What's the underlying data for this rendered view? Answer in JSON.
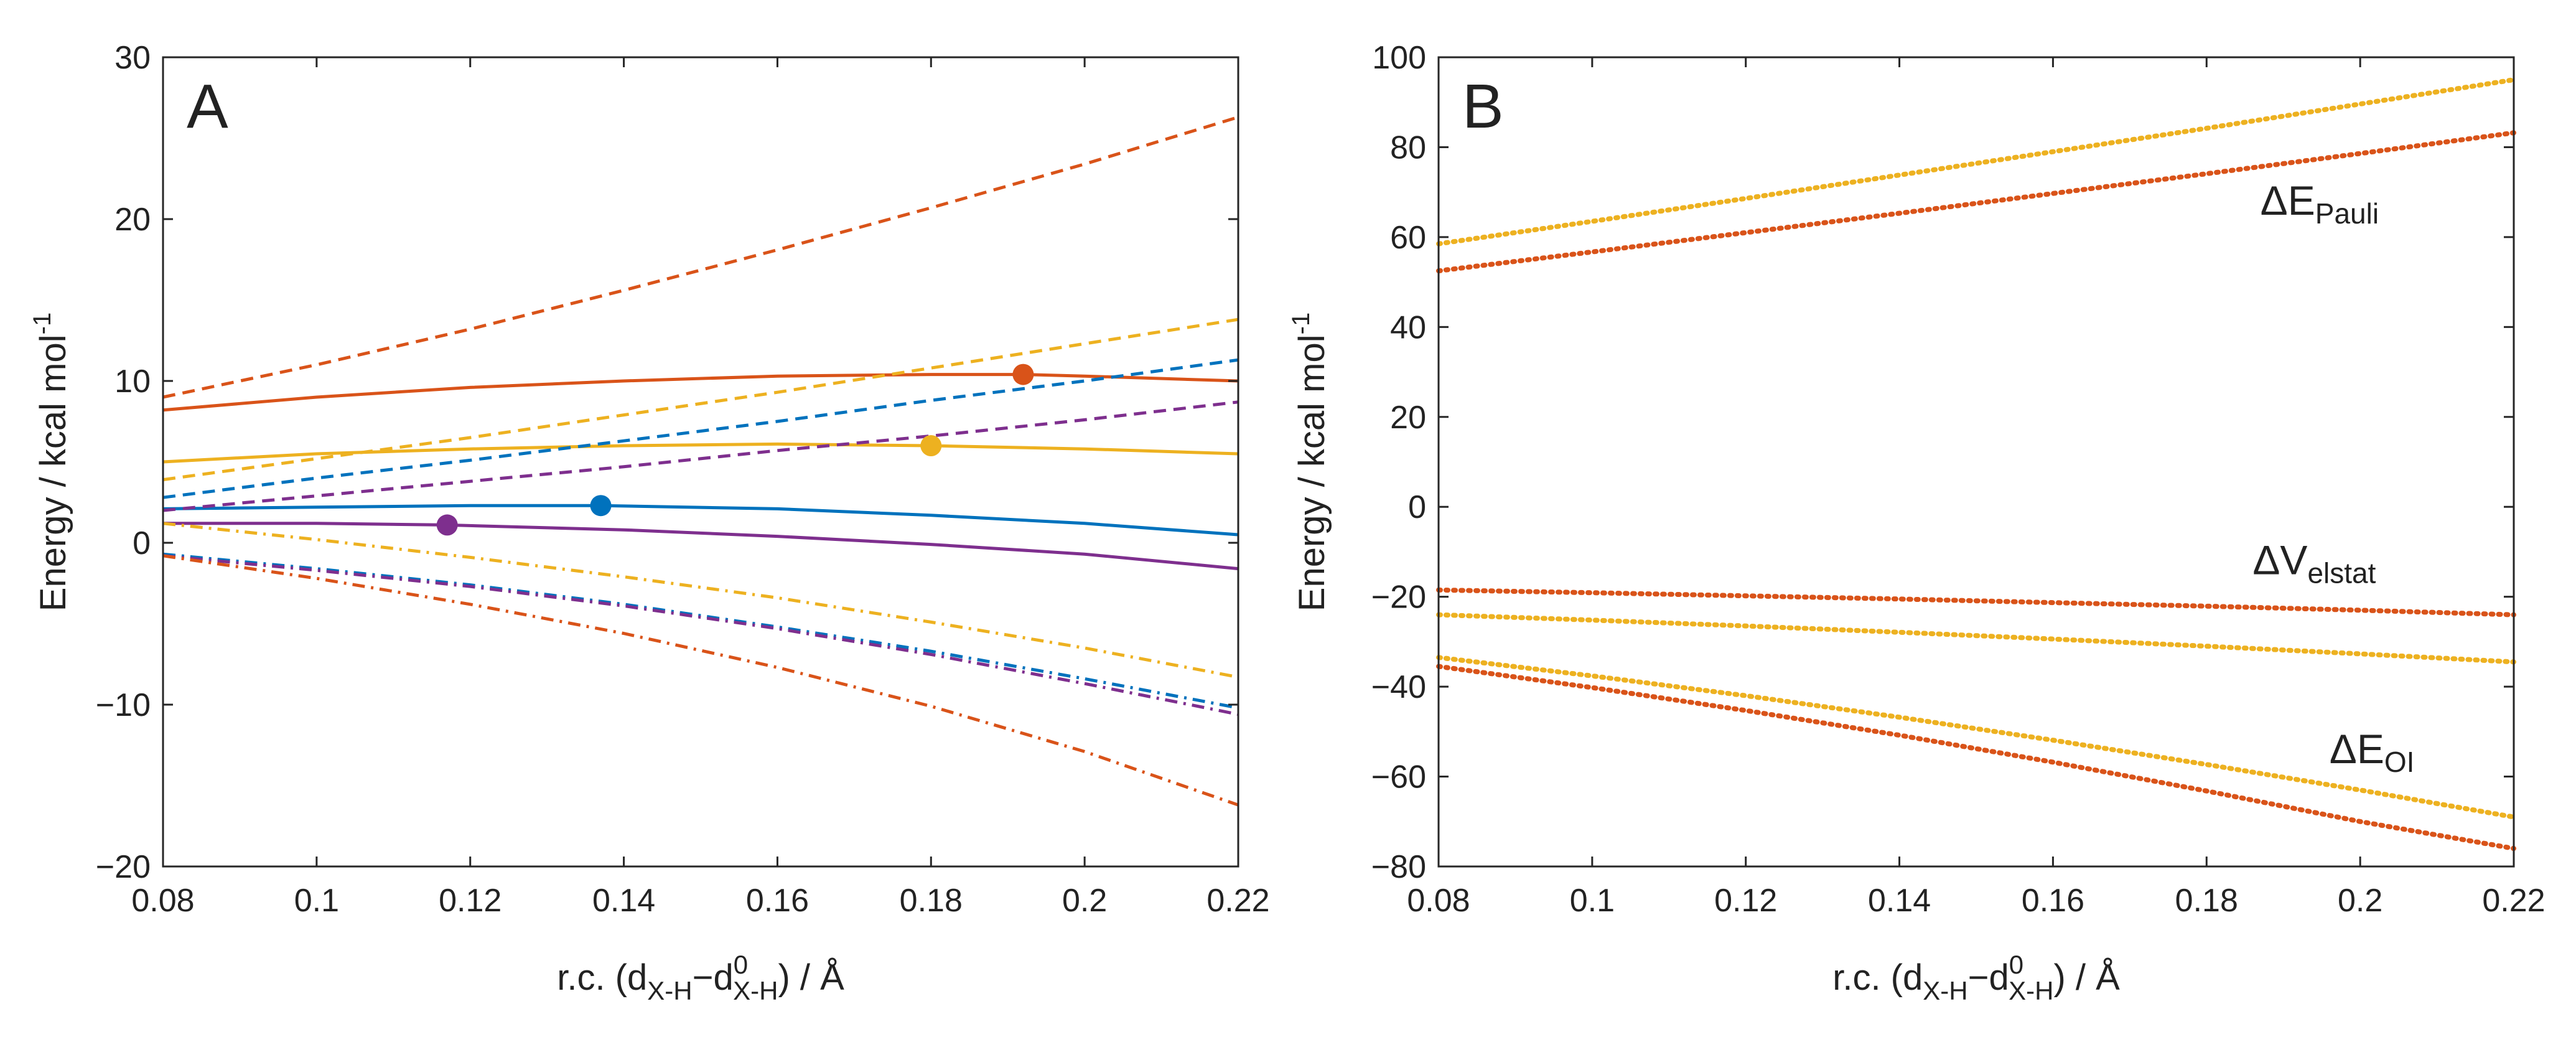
{
  "colors": {
    "red": "#D95319",
    "yellow": "#EDB120",
    "blue": "#0072BD",
    "purple": "#7E2F8E",
    "axis": "#262626"
  },
  "chart_data": [
    {
      "type": "line",
      "panel_letter": "A",
      "xlabel_parts": [
        "r.c. (d",
        "X-H",
        "−d",
        "0",
        "X-H",
        ") / Å"
      ],
      "ylabel": "Energy / kcal mol",
      "ylabel_sup": "-1",
      "xlim": [
        0.08,
        0.22
      ],
      "ylim": [
        -20,
        30
      ],
      "xticks": [
        0.08,
        0.1,
        0.12,
        0.14,
        0.16,
        0.18,
        0.2,
        0.22
      ],
      "xtick_labels": [
        "0.08",
        "0.1",
        "0.12",
        "0.14",
        "0.16",
        "0.18",
        "0.2",
        "0.22"
      ],
      "yticks": [
        -20,
        -10,
        0,
        10,
        20,
        30
      ],
      "ytick_labels": [
        "−20",
        "−10",
        "0",
        "10",
        "20",
        "30"
      ],
      "series": [
        {
          "name": "red-total",
          "color": "red",
          "style": "solid",
          "x": [
            0.08,
            0.1,
            0.12,
            0.14,
            0.16,
            0.18,
            0.192,
            0.2,
            0.22
          ],
          "y": [
            8.2,
            9.0,
            9.6,
            10.0,
            10.3,
            10.4,
            10.4,
            10.3,
            10.0
          ]
        },
        {
          "name": "yellow-total",
          "color": "yellow",
          "style": "solid",
          "x": [
            0.08,
            0.1,
            0.12,
            0.14,
            0.16,
            0.18,
            0.2,
            0.22
          ],
          "y": [
            5.0,
            5.5,
            5.8,
            6.0,
            6.1,
            6.0,
            5.8,
            5.5
          ]
        },
        {
          "name": "blue-total",
          "color": "blue",
          "style": "solid",
          "x": [
            0.08,
            0.1,
            0.12,
            0.137,
            0.16,
            0.18,
            0.2,
            0.22
          ],
          "y": [
            2.1,
            2.2,
            2.3,
            2.3,
            2.1,
            1.7,
            1.2,
            0.5
          ]
        },
        {
          "name": "purple-total",
          "color": "purple",
          "style": "solid",
          "x": [
            0.08,
            0.1,
            0.117,
            0.14,
            0.16,
            0.18,
            0.2,
            0.22
          ],
          "y": [
            1.2,
            1.2,
            1.1,
            0.8,
            0.4,
            -0.1,
            -0.7,
            -1.6
          ]
        },
        {
          "name": "red-strain",
          "color": "red",
          "style": "dashed",
          "x": [
            0.08,
            0.1,
            0.12,
            0.14,
            0.16,
            0.18,
            0.2,
            0.22
          ],
          "y": [
            9.0,
            11.0,
            13.2,
            15.6,
            18.1,
            20.7,
            23.4,
            26.3
          ]
        },
        {
          "name": "yellow-strain",
          "color": "yellow",
          "style": "dashed",
          "x": [
            0.08,
            0.1,
            0.12,
            0.14,
            0.16,
            0.18,
            0.2,
            0.22
          ],
          "y": [
            3.9,
            5.2,
            6.5,
            7.9,
            9.3,
            10.8,
            12.3,
            13.8
          ]
        },
        {
          "name": "blue-strain",
          "color": "blue",
          "style": "dashed",
          "x": [
            0.08,
            0.1,
            0.12,
            0.14,
            0.16,
            0.18,
            0.2,
            0.22
          ],
          "y": [
            2.8,
            4.0,
            5.1,
            6.3,
            7.5,
            8.8,
            10.0,
            11.3
          ]
        },
        {
          "name": "purple-strain",
          "color": "purple",
          "style": "dashed",
          "x": [
            0.08,
            0.1,
            0.12,
            0.14,
            0.16,
            0.18,
            0.2,
            0.22
          ],
          "y": [
            2.0,
            2.9,
            3.8,
            4.7,
            5.7,
            6.6,
            7.6,
            8.7
          ]
        },
        {
          "name": "yellow-interaction",
          "color": "yellow",
          "style": "dashdot",
          "x": [
            0.08,
            0.1,
            0.12,
            0.14,
            0.16,
            0.18,
            0.2,
            0.22
          ],
          "y": [
            1.2,
            0.2,
            -0.9,
            -2.1,
            -3.4,
            -4.9,
            -6.5,
            -8.3
          ]
        },
        {
          "name": "blue-interaction",
          "color": "blue",
          "style": "dashdot",
          "x": [
            0.08,
            0.1,
            0.12,
            0.14,
            0.16,
            0.18,
            0.2,
            0.22
          ],
          "y": [
            -0.7,
            -1.6,
            -2.6,
            -3.8,
            -5.2,
            -6.7,
            -8.4,
            -10.2
          ]
        },
        {
          "name": "purple-interaction",
          "color": "purple",
          "style": "dashdot",
          "x": [
            0.08,
            0.1,
            0.12,
            0.14,
            0.16,
            0.18,
            0.2,
            0.22
          ],
          "y": [
            -0.8,
            -1.7,
            -2.7,
            -3.9,
            -5.3,
            -6.9,
            -8.7,
            -10.6
          ]
        },
        {
          "name": "red-interaction",
          "color": "red",
          "style": "dashdot",
          "x": [
            0.08,
            0.1,
            0.12,
            0.14,
            0.16,
            0.18,
            0.2,
            0.22
          ],
          "y": [
            -0.8,
            -2.2,
            -3.8,
            -5.6,
            -7.7,
            -10.1,
            -12.9,
            -16.2
          ]
        }
      ],
      "points": [
        {
          "name": "red-maximum",
          "color": "red",
          "x": 0.192,
          "y": 10.4
        },
        {
          "name": "yellow-maximum",
          "color": "yellow",
          "x": 0.18,
          "y": 6.0
        },
        {
          "name": "blue-maximum",
          "color": "blue",
          "x": 0.137,
          "y": 2.3
        },
        {
          "name": "purple-maximum",
          "color": "purple",
          "x": 0.117,
          "y": 1.1
        }
      ]
    },
    {
      "type": "line",
      "panel_letter": "B",
      "xlabel_parts": [
        "r.c. (d",
        "X-H",
        "−d",
        "0",
        "X-H",
        ") / Å"
      ],
      "ylabel": "Energy / kcal mol",
      "ylabel_sup": "-1",
      "xlim": [
        0.08,
        0.22
      ],
      "ylim": [
        -80,
        100
      ],
      "xticks": [
        0.08,
        0.1,
        0.12,
        0.14,
        0.16,
        0.18,
        0.2,
        0.22
      ],
      "xtick_labels": [
        "0.08",
        "0.1",
        "0.12",
        "0.14",
        "0.16",
        "0.18",
        "0.2",
        "0.22"
      ],
      "yticks": [
        -80,
        -60,
        -40,
        -20,
        0,
        20,
        40,
        60,
        80,
        100
      ],
      "ytick_labels": [
        "−80",
        "−60",
        "−40",
        "−20",
        "0",
        "20",
        "40",
        "60",
        "80",
        "100"
      ],
      "series": [
        {
          "name": "yellow-pauli",
          "color": "yellow",
          "style": "dotted",
          "x": [
            0.08,
            0.1,
            0.12,
            0.14,
            0.16,
            0.18,
            0.2,
            0.22
          ],
          "y": [
            58.5,
            63.5,
            68.6,
            73.8,
            79.0,
            84.2,
            89.6,
            95.0
          ]
        },
        {
          "name": "red-pauli",
          "color": "red",
          "style": "dotted",
          "x": [
            0.08,
            0.1,
            0.12,
            0.14,
            0.16,
            0.18,
            0.2,
            0.22
          ],
          "y": [
            52.5,
            56.7,
            61.0,
            65.3,
            69.7,
            74.1,
            78.6,
            83.2
          ]
        },
        {
          "name": "red-elstat",
          "color": "red",
          "style": "dotted",
          "x": [
            0.08,
            0.1,
            0.12,
            0.14,
            0.16,
            0.18,
            0.2,
            0.22
          ],
          "y": [
            -18.5,
            -19.1,
            -19.8,
            -20.5,
            -21.3,
            -22.1,
            -23.0,
            -24.0
          ]
        },
        {
          "name": "yellow-elstat",
          "color": "yellow",
          "style": "dotted",
          "x": [
            0.08,
            0.1,
            0.12,
            0.14,
            0.16,
            0.18,
            0.2,
            0.22
          ],
          "y": [
            -24.0,
            -25.2,
            -26.5,
            -27.9,
            -29.4,
            -31.0,
            -32.7,
            -34.5
          ]
        },
        {
          "name": "yellow-oi",
          "color": "yellow",
          "style": "dotted",
          "x": [
            0.08,
            0.1,
            0.12,
            0.14,
            0.16,
            0.18,
            0.2,
            0.22
          ],
          "y": [
            -33.5,
            -37.6,
            -42.0,
            -46.8,
            -51.9,
            -57.3,
            -63.0,
            -69.0
          ]
        },
        {
          "name": "red-oi",
          "color": "red",
          "style": "dotted",
          "x": [
            0.08,
            0.1,
            0.12,
            0.14,
            0.16,
            0.18,
            0.2,
            0.22
          ],
          "y": [
            -35.5,
            -40.2,
            -45.3,
            -50.8,
            -56.8,
            -63.2,
            -70.0,
            -76.0
          ]
        }
      ],
      "annotations": [
        {
          "main": "ΔE",
          "sub": "Pauli",
          "x": 0.187,
          "y": 65
        },
        {
          "main": "ΔV",
          "sub": "elstat",
          "x": 0.186,
          "y": -15
        },
        {
          "main": "ΔE",
          "sub": "OI",
          "x": 0.196,
          "y": -57
        }
      ]
    }
  ]
}
